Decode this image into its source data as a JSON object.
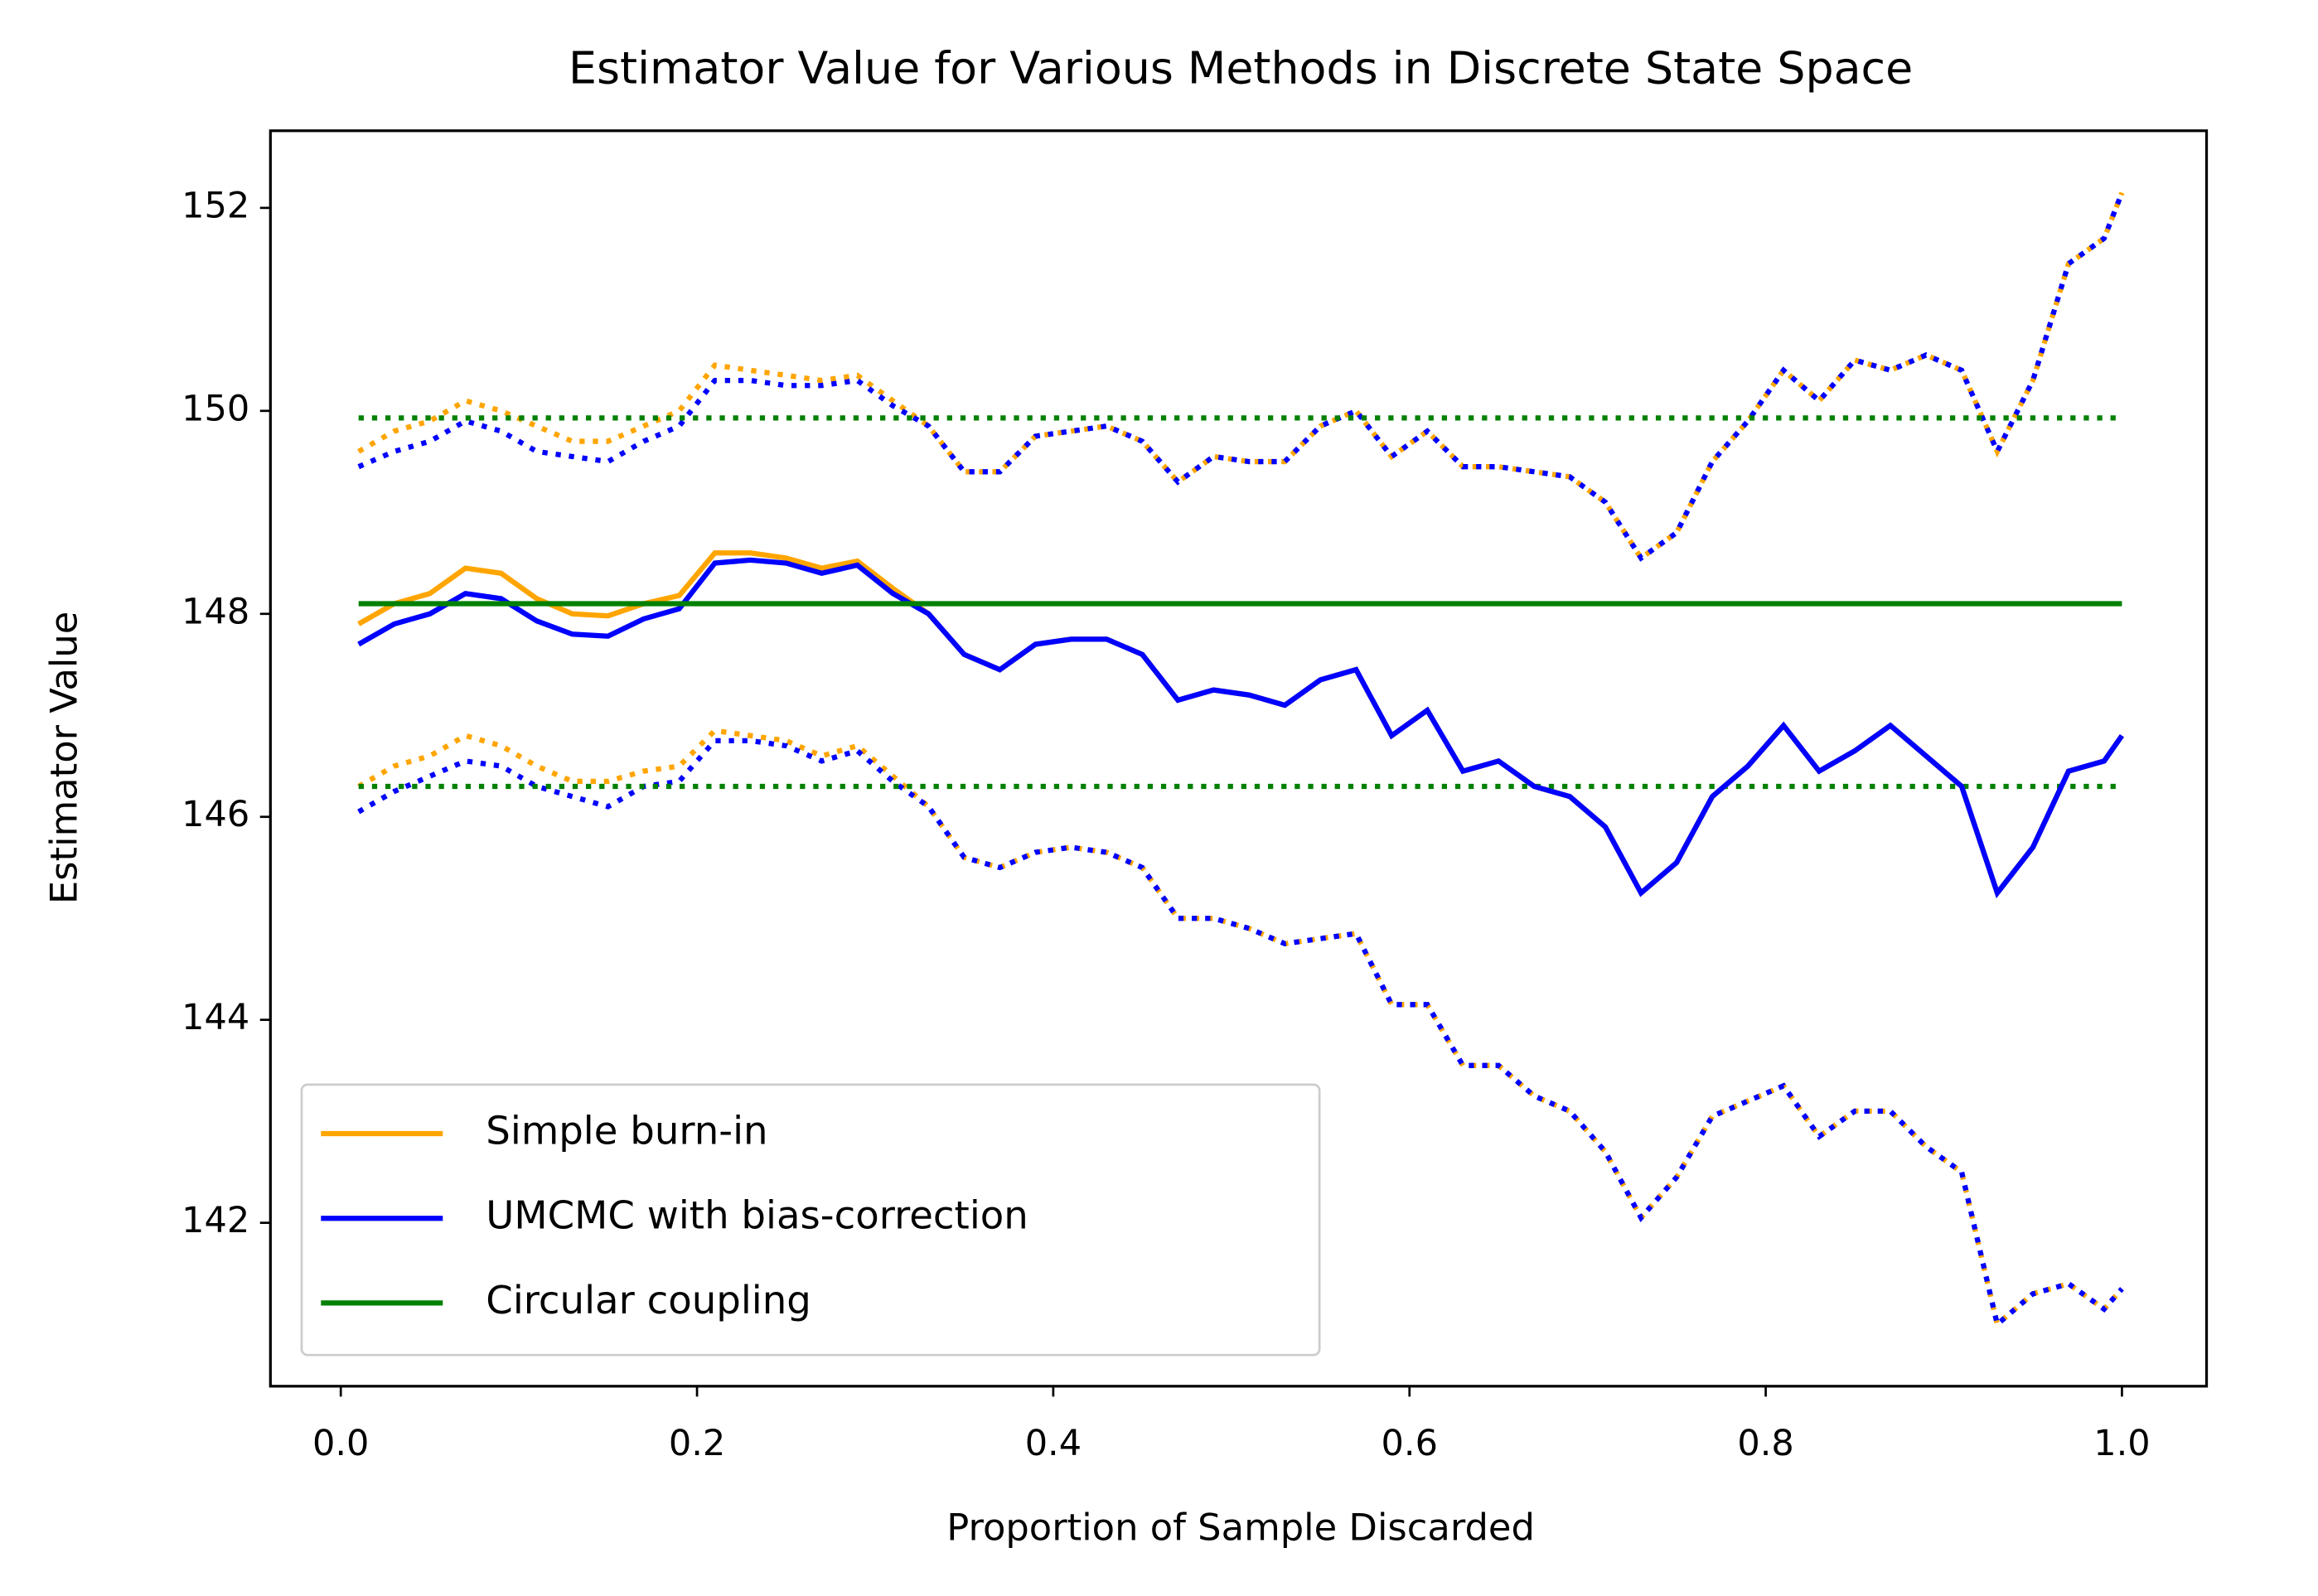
{
  "chart_data": {
    "type": "line",
    "title": "Estimator Value for Various Methods in Discrete State Space",
    "x_label": "Proportion of Sample Discarded",
    "y_label": "Estimator Value",
    "legend": "lower left",
    "xlim": [
      -0.0395,
      1.0475
    ],
    "ylim": [
      140.39,
      152.76
    ],
    "xticks": [
      {
        "value": 0.0,
        "label": "0.0"
      },
      0.2,
      0.4,
      0.6,
      0.8,
      {
        "value": 1.0,
        "label": "1.0"
      }
    ],
    "yticks": [
      142,
      144,
      146,
      148,
      150,
      152
    ],
    "x": [
      0.01,
      0.03,
      0.05,
      0.07,
      0.09,
      0.11,
      0.13,
      0.15,
      0.17,
      0.19,
      0.21,
      0.23,
      0.25,
      0.27,
      0.29,
      0.31,
      0.33,
      0.35,
      0.37,
      0.39,
      0.41,
      0.43,
      0.45,
      0.47,
      0.49,
      0.51,
      0.53,
      0.55,
      0.57,
      0.59,
      0.61,
      0.63,
      0.65,
      0.67,
      0.69,
      0.71,
      0.73,
      0.75,
      0.77,
      0.79,
      0.81,
      0.83,
      0.85,
      0.87,
      0.89,
      0.91,
      0.93,
      0.95,
      0.97,
      0.99,
      1.0
    ],
    "series": [
      {
        "color": "#ffa500",
        "style": "dotted",
        "values": [
          149.6,
          149.8,
          149.9,
          150.1,
          150.0,
          149.85,
          149.7,
          149.7,
          149.85,
          150.0,
          150.45,
          150.4,
          150.35,
          150.3,
          150.35,
          150.1,
          149.85,
          149.4,
          149.4,
          149.75,
          149.8,
          149.85,
          149.7,
          149.3,
          149.55,
          149.5,
          149.5,
          149.85,
          150.0,
          149.55,
          149.8,
          149.45,
          149.45,
          149.4,
          149.35,
          149.1,
          148.55,
          148.8,
          149.5,
          149.9,
          150.4,
          150.1,
          150.5,
          150.4,
          150.55,
          150.4,
          149.6,
          150.3,
          151.45,
          151.7,
          152.15
        ]
      },
      {
        "color": "#ffa500",
        "style": "dotted",
        "values": [
          146.3,
          146.5,
          146.6,
          146.8,
          146.7,
          146.5,
          146.35,
          146.35,
          146.45,
          146.5,
          146.85,
          146.8,
          146.75,
          146.6,
          146.7,
          146.4,
          146.1,
          145.6,
          145.5,
          145.65,
          145.7,
          145.65,
          145.5,
          145.0,
          145.0,
          144.9,
          144.75,
          144.8,
          144.85,
          144.15,
          144.15,
          143.55,
          143.55,
          143.25,
          143.1,
          142.7,
          142.05,
          142.45,
          143.05,
          143.2,
          143.35,
          142.85,
          143.1,
          143.1,
          142.75,
          142.5,
          141.0,
          141.3,
          141.4,
          141.15,
          141.35
        ]
      },
      {
        "color": "#0000ff",
        "style": "dotted",
        "values": [
          149.45,
          149.6,
          149.7,
          149.9,
          149.8,
          149.6,
          149.55,
          149.5,
          149.7,
          149.85,
          150.3,
          150.3,
          150.25,
          150.25,
          150.3,
          150.05,
          149.85,
          149.4,
          149.4,
          149.75,
          149.8,
          149.85,
          149.7,
          149.3,
          149.55,
          149.5,
          149.5,
          149.85,
          150.0,
          149.55,
          149.8,
          149.45,
          149.45,
          149.4,
          149.35,
          149.1,
          148.55,
          148.8,
          149.5,
          149.9,
          150.4,
          150.1,
          150.5,
          150.4,
          150.55,
          150.4,
          149.6,
          150.3,
          151.45,
          151.7,
          152.15
        ]
      },
      {
        "color": "#0000ff",
        "style": "dotted",
        "values": [
          146.05,
          146.25,
          146.4,
          146.55,
          146.5,
          146.3,
          146.2,
          146.1,
          146.3,
          146.35,
          146.75,
          146.75,
          146.7,
          146.55,
          146.65,
          146.35,
          146.1,
          145.6,
          145.5,
          145.65,
          145.7,
          145.65,
          145.5,
          145.0,
          145.0,
          144.9,
          144.75,
          144.8,
          144.85,
          144.15,
          144.15,
          143.55,
          143.55,
          143.25,
          143.1,
          142.7,
          142.05,
          142.45,
          143.05,
          143.2,
          143.35,
          142.85,
          143.1,
          143.1,
          142.75,
          142.5,
          141.0,
          141.3,
          141.4,
          141.15,
          141.35
        ]
      },
      {
        "color": "#008000",
        "style": "dotted",
        "x": [
          0.01,
          1.0
        ],
        "values": [
          149.93,
          149.93
        ]
      },
      {
        "color": "#008000",
        "style": "dotted",
        "x": [
          0.01,
          1.0
        ],
        "values": [
          146.3,
          146.3
        ]
      },
      {
        "name": "Simple burn-in",
        "color": "#ffa500",
        "style": "solid",
        "values": [
          147.9,
          148.1,
          148.2,
          148.45,
          148.4,
          148.15,
          148.0,
          147.98,
          148.1,
          148.18,
          148.6,
          148.6,
          148.55,
          148.45,
          148.52,
          148.25,
          148.0,
          147.6,
          147.45,
          147.7,
          147.75,
          147.75,
          147.6,
          147.15,
          147.25,
          147.2,
          147.1,
          147.35,
          147.45,
          146.8,
          147.05,
          146.45,
          146.55,
          146.3,
          146.2,
          145.9,
          145.25,
          145.55,
          146.2,
          146.5,
          146.9,
          146.45,
          146.65,
          146.9,
          146.6,
          146.3,
          145.25,
          145.7,
          146.45,
          146.55,
          146.8
        ]
      },
      {
        "name": "UMCMC with bias-correction",
        "color": "#0000ff",
        "style": "solid",
        "values": [
          147.7,
          147.9,
          148.0,
          148.2,
          148.15,
          147.93,
          147.8,
          147.78,
          147.95,
          148.05,
          148.5,
          148.53,
          148.5,
          148.4,
          148.48,
          148.2,
          148.0,
          147.6,
          147.45,
          147.7,
          147.75,
          147.75,
          147.6,
          147.15,
          147.25,
          147.2,
          147.1,
          147.35,
          147.45,
          146.8,
          147.05,
          146.45,
          146.55,
          146.3,
          146.2,
          145.9,
          145.25,
          145.55,
          146.2,
          146.5,
          146.9,
          146.45,
          146.65,
          146.9,
          146.6,
          146.3,
          145.25,
          145.7,
          146.45,
          146.55,
          146.8
        ]
      },
      {
        "name": "Circular coupling",
        "color": "#008000",
        "style": "solid",
        "x": [
          0.01,
          1.0
        ],
        "values": [
          148.1,
          148.1
        ]
      }
    ]
  }
}
